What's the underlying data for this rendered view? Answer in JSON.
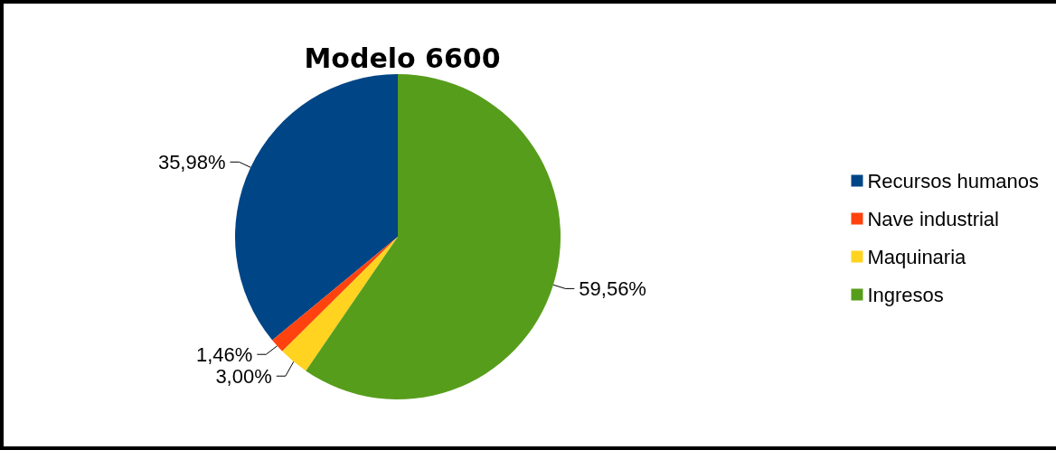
{
  "chart_data": {
    "type": "pie",
    "title": "Modelo 6600",
    "categories": [
      "Recursos humanos",
      "Nave industrial",
      "Maquinaria",
      "Ingresos"
    ],
    "values": [
      35.98,
      1.46,
      3.0,
      59.56
    ],
    "value_labels": [
      "35,98%",
      "1,46%",
      "3,00%",
      "59,56%"
    ],
    "colors": [
      "#004586",
      "#ff420e",
      "#ffd320",
      "#579d1c"
    ],
    "legend": "right"
  }
}
